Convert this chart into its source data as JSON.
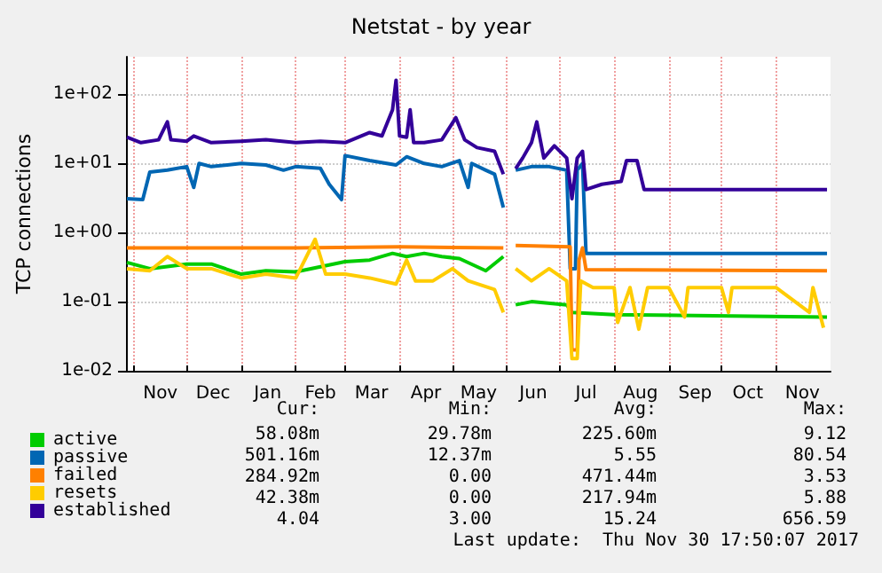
{
  "chart_data": {
    "type": "line",
    "title": "Netstat - by year",
    "ylabel": "TCP connections",
    "log": "y",
    "grid": true,
    "legend": "bottom left",
    "marker": "none",
    "line_style": "solid",
    "xlim": [
      "2016-10-28",
      "2017-12-02"
    ],
    "xticks": [
      {
        "value": "2016-11-01",
        "label": null
      },
      {
        "value": "2016-11-16",
        "label": "Nov"
      },
      {
        "value": "2016-12-01",
        "label": null
      },
      {
        "value": "2016-12-16",
        "label": "Dec"
      },
      {
        "value": "2017-01-01",
        "label": null
      },
      {
        "value": "2017-01-16",
        "label": "Jan"
      },
      {
        "value": "2017-02-01",
        "label": null
      },
      {
        "value": "2017-02-15",
        "label": "Feb"
      },
      {
        "value": "2017-03-01",
        "label": null
      },
      {
        "value": "2017-03-16",
        "label": "Mar"
      },
      {
        "value": "2017-04-01",
        "label": null
      },
      {
        "value": "2017-04-16",
        "label": "Apr"
      },
      {
        "value": "2017-05-01",
        "label": null
      },
      {
        "value": "2017-05-16",
        "label": "May"
      },
      {
        "value": "2017-06-01",
        "label": null
      },
      {
        "value": "2017-06-16",
        "label": "Jun"
      },
      {
        "value": "2017-07-01",
        "label": null
      },
      {
        "value": "2017-07-16",
        "label": "Jul"
      },
      {
        "value": "2017-08-01",
        "label": null
      },
      {
        "value": "2017-08-16",
        "label": "Aug"
      },
      {
        "value": "2017-09-01",
        "label": null
      },
      {
        "value": "2017-09-16",
        "label": "Sep"
      },
      {
        "value": "2017-10-01",
        "label": null
      },
      {
        "value": "2017-10-16",
        "label": "Oct"
      },
      {
        "value": "2017-11-01",
        "label": null
      },
      {
        "value": "2017-11-16",
        "label": "Nov"
      }
    ],
    "ylim": [
      0.01,
      350
    ],
    "yticks": [
      {
        "value": 0.01,
        "label": "1e-02"
      },
      {
        "value": 0.1,
        "label": "1e-01"
      },
      {
        "value": 1,
        "label": "1e+00"
      },
      {
        "value": 10,
        "label": "1e+01"
      },
      {
        "value": 100,
        "label": "1e+02"
      }
    ],
    "annotations": [
      "Cur:",
      "Min:",
      "Avg:",
      "Max:",
      "58.08m",
      "29.78m",
      "225.60m",
      "9.12",
      "501.16m",
      "12.37m",
      "5.55",
      "80.54",
      "284.92m",
      "0.00",
      "471.44m",
      "3.53",
      "42.38m",
      "0.00",
      "217.94m",
      "5.88",
      "4.04",
      "3.00",
      "15.24",
      "656.59",
      "Last update:  Thu Nov 30 17:50:07 2017"
    ],
    "series": [
      {
        "name": "active",
        "color": "#00cc00",
        "x": [
          "2016-10-28",
          "2016-11-10",
          "2016-12-01",
          "2016-12-15",
          "2017-01-01",
          "2017-01-15",
          "2017-02-01",
          "2017-02-15",
          "2017-03-01",
          "2017-03-15",
          "2017-03-28",
          "2017-04-05",
          "2017-04-15",
          "2017-04-25",
          "2017-05-05",
          "2017-05-20",
          "2017-05-30",
          "2017-06-03",
          "2017-06-06",
          "2017-06-15",
          "2017-07-05",
          "2017-07-08",
          "2017-08-01",
          "2017-11-30"
        ],
        "values": [
          0.37,
          0.3,
          0.35,
          0.35,
          0.25,
          0.28,
          0.27,
          0.32,
          0.38,
          0.4,
          0.5,
          0.45,
          0.5,
          0.45,
          0.42,
          0.28,
          0.45,
          null,
          0.09,
          0.1,
          0.09,
          0.07,
          0.065,
          0.06
        ]
      },
      {
        "name": "passive",
        "color": "#0066b3",
        "x": [
          "2016-10-28",
          "2016-11-06",
          "2016-11-10",
          "2016-11-20",
          "2016-12-01",
          "2016-12-05",
          "2016-12-08",
          "2016-12-15",
          "2017-01-01",
          "2017-01-15",
          "2017-01-25",
          "2017-02-01",
          "2017-02-15",
          "2017-02-20",
          "2017-02-27",
          "2017-03-01",
          "2017-03-15",
          "2017-03-30",
          "2017-04-05",
          "2017-04-15",
          "2017-04-25",
          "2017-05-05",
          "2017-05-10",
          "2017-05-12",
          "2017-05-20",
          "2017-05-25",
          "2017-05-30",
          "2017-06-03",
          "2017-06-06",
          "2017-06-15",
          "2017-06-25",
          "2017-07-05",
          "2017-07-07",
          "2017-07-10",
          "2017-07-11",
          "2017-07-14",
          "2017-07-16",
          "2017-11-30"
        ],
        "values": [
          3.1,
          3,
          7.5,
          8,
          9,
          4.5,
          10,
          9,
          10,
          9.5,
          8,
          9,
          8.5,
          5,
          3,
          13,
          11,
          9.5,
          12.5,
          10,
          9,
          11,
          4.5,
          10,
          8,
          7,
          2.3,
          null,
          8,
          9,
          9,
          8,
          0.3,
          0.3,
          8,
          10,
          0.5,
          0.5
        ]
      },
      {
        "name": "failed",
        "color": "#ff8000",
        "x": [
          "2016-10-28",
          "2017-02-01",
          "2017-04-01",
          "2017-05-30",
          "2017-06-03",
          "2017-06-06",
          "2017-07-07",
          "2017-07-08",
          "2017-07-11",
          "2017-07-12",
          "2017-07-14",
          "2017-07-16",
          "2017-11-30"
        ],
        "values": [
          0.6,
          0.6,
          0.62,
          0.6,
          null,
          0.65,
          0.62,
          0.02,
          0.02,
          0.4,
          0.6,
          0.29,
          0.28
        ]
      },
      {
        "name": "resets",
        "color": "#ffcc00",
        "x": [
          "2016-10-28",
          "2016-11-10",
          "2016-11-20",
          "2016-12-01",
          "2016-12-15",
          "2017-01-01",
          "2017-01-15",
          "2017-02-01",
          "2017-02-12",
          "2017-02-18",
          "2017-03-01",
          "2017-03-15",
          "2017-03-30",
          "2017-04-05",
          "2017-04-10",
          "2017-04-20",
          "2017-05-01",
          "2017-05-10",
          "2017-05-25",
          "2017-05-30",
          "2017-06-03",
          "2017-06-06",
          "2017-06-15",
          "2017-06-25",
          "2017-07-05",
          "2017-07-08",
          "2017-07-11",
          "2017-07-13",
          "2017-07-20",
          "2017-08-01",
          "2017-08-03",
          "2017-08-10",
          "2017-08-15",
          "2017-08-20",
          "2017-09-01",
          "2017-09-10",
          "2017-09-12",
          "2017-10-01",
          "2017-10-05",
          "2017-10-07",
          "2017-11-01",
          "2017-11-20",
          "2017-11-22",
          "2017-11-28"
        ],
        "values": [
          0.3,
          0.28,
          0.45,
          0.3,
          0.3,
          0.22,
          0.25,
          0.22,
          0.8,
          0.25,
          0.25,
          0.22,
          0.18,
          0.4,
          0.2,
          0.2,
          0.3,
          0.2,
          0.15,
          0.07,
          null,
          0.3,
          0.2,
          0.3,
          0.2,
          0.015,
          0.015,
          0.2,
          0.16,
          0.16,
          0.05,
          0.16,
          0.04,
          0.16,
          0.16,
          0.06,
          0.16,
          0.16,
          0.07,
          0.16,
          0.16,
          0.07,
          0.16,
          0.042
        ]
      },
      {
        "name": "established",
        "color": "#330099",
        "x": [
          "2016-10-28",
          "2016-11-05",
          "2016-11-15",
          "2016-11-20",
          "2016-11-22",
          "2016-12-01",
          "2016-12-05",
          "2016-12-15",
          "2017-01-01",
          "2017-01-15",
          "2017-02-01",
          "2017-02-15",
          "2017-03-01",
          "2017-03-15",
          "2017-03-22",
          "2017-03-28",
          "2017-03-30",
          "2017-04-01",
          "2017-04-05",
          "2017-04-07",
          "2017-04-09",
          "2017-04-15",
          "2017-04-25",
          "2017-05-03",
          "2017-05-08",
          "2017-05-15",
          "2017-05-25",
          "2017-05-30",
          "2017-06-03",
          "2017-06-06",
          "2017-06-10",
          "2017-06-15",
          "2017-06-18",
          "2017-06-22",
          "2017-06-28",
          "2017-07-05",
          "2017-07-08",
          "2017-07-11",
          "2017-07-14",
          "2017-07-16",
          "2017-07-25",
          "2017-08-05",
          "2017-08-08",
          "2017-08-14",
          "2017-08-18",
          "2017-09-01",
          "2017-11-30"
        ],
        "values": [
          24,
          20,
          22,
          40,
          22,
          21,
          25,
          20,
          21,
          22,
          20,
          21,
          20,
          28,
          25,
          60,
          160,
          25,
          24,
          60,
          20,
          20,
          22,
          46,
          22,
          17,
          15,
          7,
          null,
          8.4,
          12,
          20,
          40,
          12,
          18,
          12,
          3.1,
          12,
          15,
          4.2,
          5,
          5.5,
          11,
          11,
          4.2,
          4.2,
          4.2
        ]
      }
    ]
  }
}
